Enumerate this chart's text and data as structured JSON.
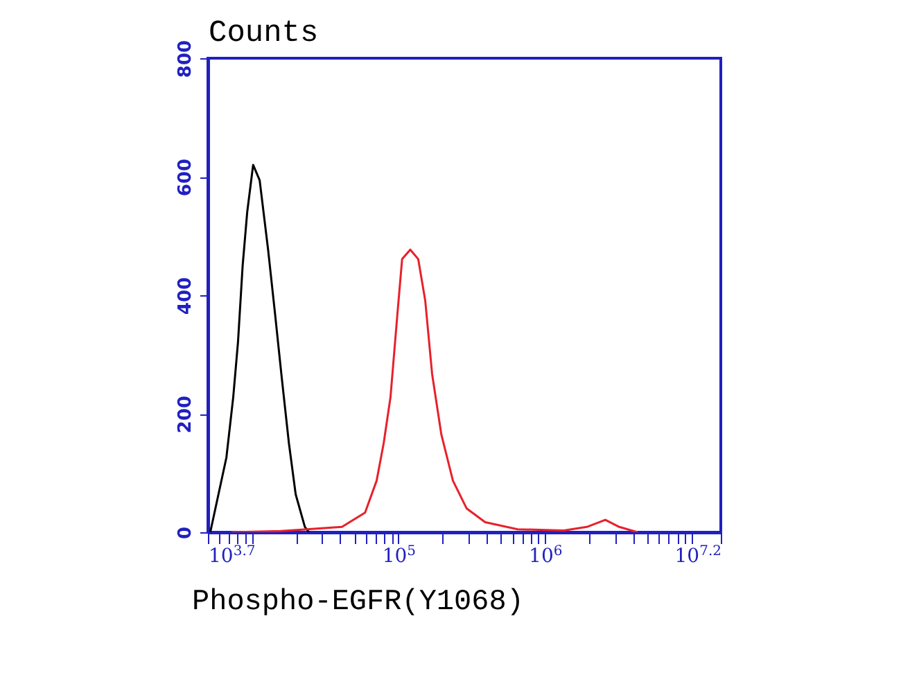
{
  "chart_data": {
    "type": "line",
    "ylabel": "Counts",
    "xlabel": "Phospho-EGFR(Y1068)",
    "log": "x",
    "xlim": [
      5012,
      15850000
    ],
    "ylim": [
      0,
      800
    ],
    "yticks": [
      0,
      200,
      400,
      600,
      800
    ],
    "xticks": [
      {
        "value": 5012,
        "label": "10$^{3.7}$"
      },
      {
        "value": 6000,
        "label": null
      },
      {
        "value": 7000,
        "label": null
      },
      {
        "value": 8000,
        "label": null
      },
      {
        "value": 9000,
        "label": null
      },
      {
        "value": 10000,
        "label": null
      },
      {
        "value": 20000,
        "label": null
      },
      {
        "value": 30000,
        "label": null
      },
      {
        "value": 40000,
        "label": null
      },
      {
        "value": 50000,
        "label": null
      },
      {
        "value": 60000,
        "label": null
      },
      {
        "value": 70000,
        "label": null
      },
      {
        "value": 80000,
        "label": null
      },
      {
        "value": 90000,
        "label": null
      },
      {
        "value": 100000,
        "label": "10$^{5}$"
      },
      {
        "value": 200000,
        "label": null
      },
      {
        "value": 300000,
        "label": null
      },
      {
        "value": 400000,
        "label": null
      },
      {
        "value": 500000,
        "label": null
      },
      {
        "value": 600000,
        "label": null
      },
      {
        "value": 700000,
        "label": null
      },
      {
        "value": 800000,
        "label": null
      },
      {
        "value": 900000,
        "label": null
      },
      {
        "value": 1000000,
        "label": "10$^{6}$"
      },
      {
        "value": 2000000,
        "label": null
      },
      {
        "value": 3000000,
        "label": null
      },
      {
        "value": 4000000,
        "label": null
      },
      {
        "value": 5000000,
        "label": null
      },
      {
        "value": 6000000,
        "label": null
      },
      {
        "value": 7000000,
        "label": null
      },
      {
        "value": 8000000,
        "label": null
      },
      {
        "value": 9000000,
        "label": null
      },
      {
        "value": 10000000,
        "label": null
      },
      {
        "value": 15850000,
        "label": "10$^{7.2}$"
      }
    ],
    "grid": false,
    "marker": "none",
    "line_style": "solid",
    "series": [
      {
        "color": "#000000",
        "x": [
          5200,
          6700,
          7460,
          8040,
          8650,
          9290,
          10200,
          11300,
          12900,
          14400,
          16000,
          17900,
          19900,
          23000,
          24500
        ],
        "values": [
          0,
          126,
          228,
          321,
          450,
          540,
          620,
          594,
          477,
          368,
          260,
          150,
          64,
          9,
          0
        ]
      },
      {
        "color": "#e8202a",
        "x": [
          7240,
          15800,
          41200,
          59200,
          71000,
          79300,
          88300,
          98400,
          106000,
          120500,
          136500,
          152400,
          169800,
          196300,
          235500,
          292400,
          390800,
          650100,
          1343000,
          1932000,
          2582000,
          3214000,
          4295000
        ],
        "values": [
          0,
          2,
          9,
          33,
          87,
          150,
          228,
          368,
          461,
          477,
          461,
          391,
          267,
          165,
          87,
          40,
          17,
          5,
          3,
          9,
          21,
          9,
          0
        ]
      }
    ]
  }
}
